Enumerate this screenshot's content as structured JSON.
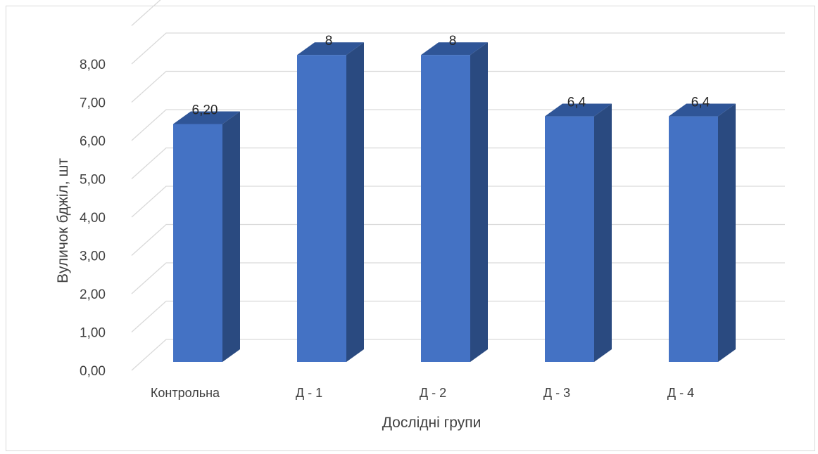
{
  "chart_data": {
    "type": "bar",
    "categories": [
      "Контрольна",
      "Д - 1",
      "Д - 2",
      "Д - 3",
      "Д - 4"
    ],
    "values": [
      6.2,
      8,
      8,
      6.4,
      6.4
    ],
    "data_labels": [
      "6,20",
      "8",
      "8",
      "6,4",
      "6,4"
    ],
    "yticks": [
      "0,00",
      "1,00",
      "2,00",
      "3,00",
      "4,00",
      "5,00",
      "6,00",
      "7,00",
      "8,00"
    ],
    "xlabel": "Дослідні групи",
    "ylabel": "Вуличок бджіл, шт",
    "ylim": [
      0,
      9
    ],
    "grid": true,
    "style": "3d-column",
    "colors": {
      "front": "#4472c4",
      "side": "#2a4a80",
      "top": "#2f5597",
      "grid": "#d9d9d9"
    }
  }
}
